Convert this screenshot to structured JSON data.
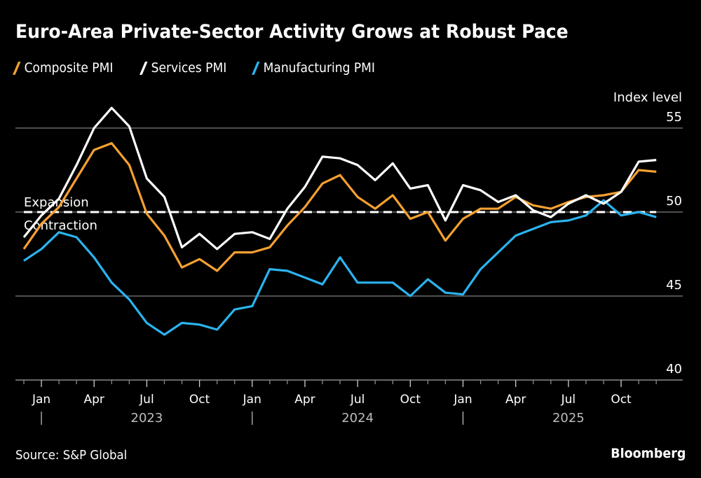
{
  "title": "Euro-Area Private-Sector Activity Grows at Robust Pace",
  "legend": [
    {
      "label": "Composite PMI",
      "color": "#f5a031"
    },
    {
      "label": "Services PMI",
      "color": "#ffffff"
    },
    {
      "label": "Manufacturing PMI",
      "color": "#2bb3ef"
    }
  ],
  "source": "Source: S&P Global",
  "brand": "Bloomberg",
  "chart_data": {
    "type": "line",
    "title": "Euro-Area Private-Sector Activity Grows at Robust Pace",
    "ylabel": "Index level",
    "xlabel": "",
    "ylim": [
      40,
      55
    ],
    "yticks": [
      40,
      45,
      50,
      55
    ],
    "grid": true,
    "legend_position": "top-left",
    "reference_line": {
      "value": 50,
      "style": "dashed",
      "label_above": "Expansion",
      "label_below": "Contraction"
    },
    "x": [
      "2022-12",
      "2023-01",
      "2023-02",
      "2023-03",
      "2023-04",
      "2023-05",
      "2023-06",
      "2023-07",
      "2023-08",
      "2023-09",
      "2023-10",
      "2023-11",
      "2023-12",
      "2024-01",
      "2024-02",
      "2024-03",
      "2024-04",
      "2024-05",
      "2024-06",
      "2024-07",
      "2024-08",
      "2024-09",
      "2024-10",
      "2024-11",
      "2024-12",
      "2025-01",
      "2025-02",
      "2025-03",
      "2025-04",
      "2025-05",
      "2025-06",
      "2025-07",
      "2025-08",
      "2025-09",
      "2025-10",
      "2025-11",
      "2025-12"
    ],
    "x_tick_labels": [
      {
        "month": "2023-01",
        "label": "Jan"
      },
      {
        "month": "2023-04",
        "label": "Apr"
      },
      {
        "month": "2023-07",
        "label": "Jul"
      },
      {
        "month": "2023-10",
        "label": "Oct"
      },
      {
        "month": "2024-01",
        "label": "Jan"
      },
      {
        "month": "2024-04",
        "label": "Apr"
      },
      {
        "month": "2024-07",
        "label": "Jul"
      },
      {
        "month": "2024-10",
        "label": "Oct"
      },
      {
        "month": "2025-01",
        "label": "Jan"
      },
      {
        "month": "2025-04",
        "label": "Apr"
      },
      {
        "month": "2025-07",
        "label": "Jul"
      },
      {
        "month": "2025-10",
        "label": "Oct"
      }
    ],
    "year_labels": [
      {
        "label": "2023",
        "center_month": "2023-07",
        "divider_month": "2023-01"
      },
      {
        "label": "2024",
        "center_month": "2024-07",
        "divider_month": "2024-01"
      },
      {
        "label": "2025",
        "center_month": "2025-07",
        "divider_month": "2025-01"
      }
    ],
    "series": [
      {
        "name": "Composite PMI",
        "color": "#f5a031",
        "values": [
          47.8,
          49.3,
          50.3,
          52.0,
          53.7,
          54.1,
          52.8,
          49.9,
          48.6,
          46.7,
          47.2,
          46.5,
          47.6,
          47.6,
          47.9,
          49.2,
          50.3,
          51.7,
          52.2,
          50.9,
          50.2,
          51.0,
          49.6,
          50.0,
          48.3,
          49.6,
          50.2,
          50.2,
          50.9,
          50.4,
          50.2,
          50.6,
          50.9,
          51.0,
          51.2,
          52.5,
          52.4
        ]
      },
      {
        "name": "Services PMI",
        "color": "#ffffff",
        "values": [
          48.5,
          49.8,
          50.8,
          52.8,
          55.0,
          56.2,
          55.1,
          52.0,
          50.9,
          47.9,
          48.7,
          47.8,
          48.7,
          48.8,
          48.4,
          50.2,
          51.5,
          53.3,
          53.2,
          52.8,
          51.9,
          52.9,
          51.4,
          51.6,
          49.5,
          51.6,
          51.3,
          50.6,
          51.0,
          50.1,
          49.7,
          50.5,
          51.0,
          50.5,
          51.2,
          53.0,
          53.1
        ]
      },
      {
        "name": "Manufacturing PMI",
        "color": "#2bb3ef",
        "values": [
          47.1,
          47.8,
          48.8,
          48.5,
          47.3,
          45.8,
          44.8,
          43.4,
          42.7,
          43.4,
          43.3,
          43.0,
          44.2,
          44.4,
          46.6,
          46.5,
          46.1,
          45.7,
          47.3,
          45.8,
          45.8,
          45.8,
          45.0,
          46.0,
          45.2,
          45.1,
          46.6,
          47.6,
          48.6,
          49.0,
          49.4,
          49.5,
          49.8,
          50.7,
          49.8,
          50.0,
          49.7
        ]
      }
    ]
  }
}
